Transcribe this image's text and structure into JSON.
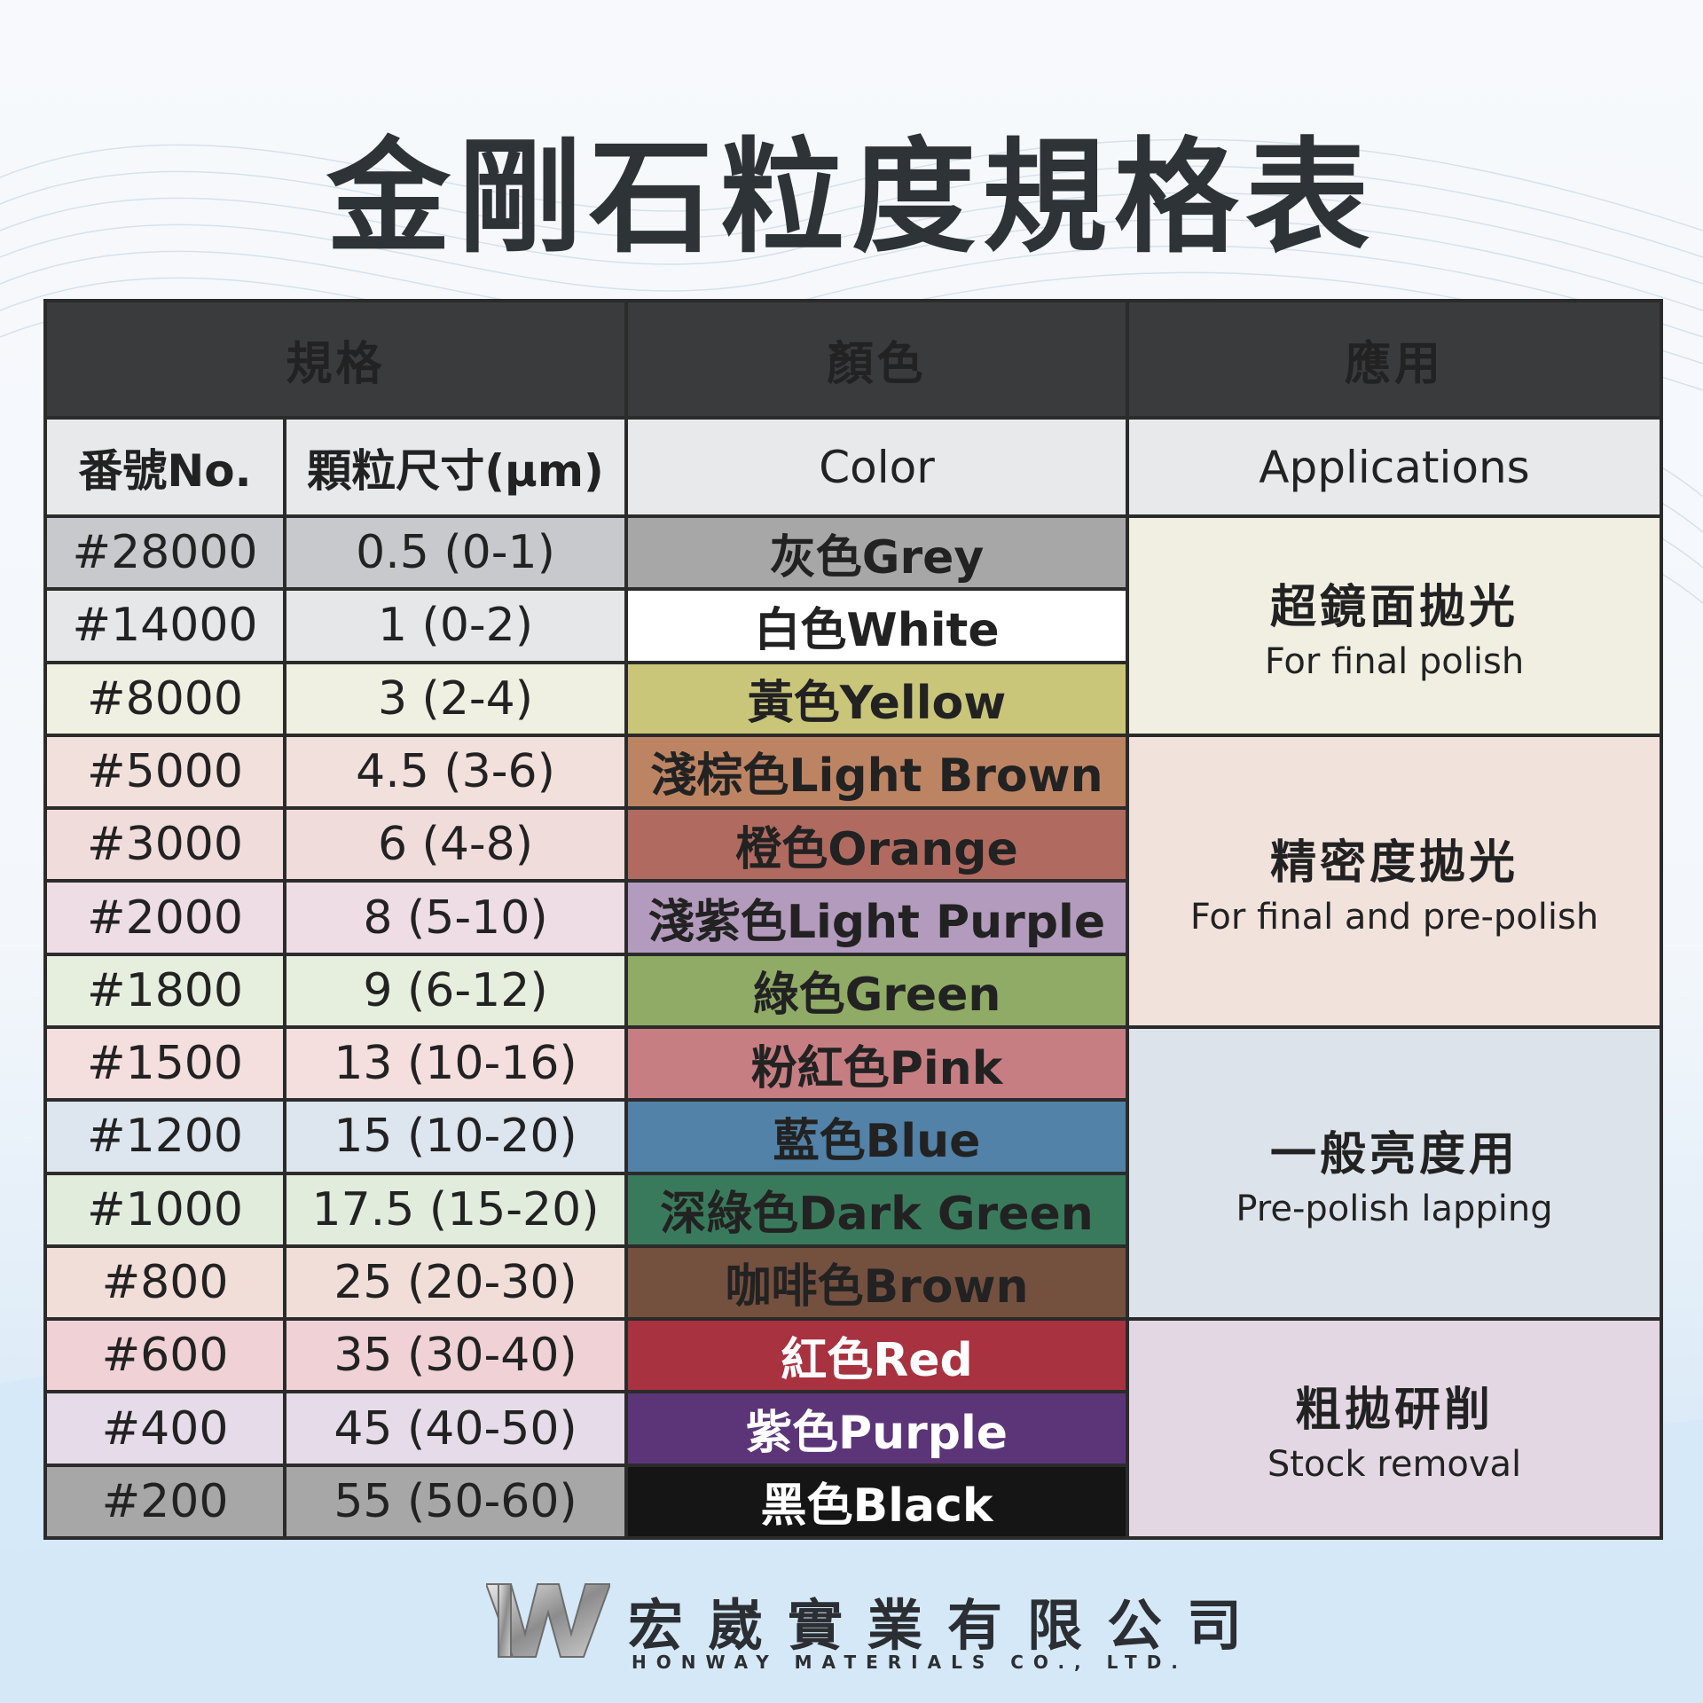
{
  "title": "金剛石粒度規格表",
  "table": {
    "group_headers": [
      "規格",
      "顏色",
      "應用"
    ],
    "sub_headers": {
      "no": "番號No.",
      "size": "顆粒尺寸(μm)",
      "color": "Color",
      "applications": "Applications"
    },
    "rows": [
      {
        "no": "#28000",
        "size": "0.5 (0-1)",
        "color": "灰色Grey",
        "row_bg": "#c8c9cc",
        "swatch": "#a8a7a7",
        "text": "#222222"
      },
      {
        "no": "#14000",
        "size": "1 (0-2)",
        "color": "白色White",
        "row_bg": "#e6e7e8",
        "swatch": "#ffffff",
        "text": "#222222"
      },
      {
        "no": "#8000",
        "size": "3 (2-4)",
        "color": "黃色Yellow",
        "row_bg": "#f0f0e2",
        "swatch": "#c9c67a",
        "text": "#222222"
      },
      {
        "no": "#5000",
        "size": "4.5 (3-6)",
        "color": "淺棕色Light Brown",
        "row_bg": "#f1e0db",
        "swatch": "#bd8463",
        "text": "#222222"
      },
      {
        "no": "#3000",
        "size": "6 (4-8)",
        "color": "橙色Orange",
        "row_bg": "#f1dcdc",
        "swatch": "#b06a5f",
        "text": "#222222"
      },
      {
        "no": "#2000",
        "size": "8 (5-10)",
        "color": "淺紫色Light Purple",
        "row_bg": "#eeddE4",
        "swatch": "#b39bbd",
        "text": "#222222"
      },
      {
        "no": "#1800",
        "size": "9 (6-12)",
        "color": "綠色Green",
        "row_bg": "#e6eedd",
        "swatch": "#8fab66",
        "text": "#222222"
      },
      {
        "no": "#1500",
        "size": "13 (10-16)",
        "color": "粉紅色Pink",
        "row_bg": "#f4dede",
        "swatch": "#c77e82",
        "text": "#222222"
      },
      {
        "no": "#1200",
        "size": "15 (10-20)",
        "color": "藍色Blue",
        "row_bg": "#dde6ee",
        "swatch": "#5282a8",
        "text": "#222222"
      },
      {
        "no": "#1000",
        "size": "17.5 (15-20)",
        "color": "深綠色Dark Green",
        "row_bg": "#e1ecdd",
        "swatch": "#3a7a5c",
        "text": "#222222"
      },
      {
        "no": "#800",
        "size": "25 (20-30)",
        "color": "咖啡色Brown",
        "row_bg": "#f1ded8",
        "swatch": "#74503f",
        "text": "#222222"
      },
      {
        "no": "#600",
        "size": "35 (30-40)",
        "color": "紅色Red",
        "row_bg": "#f0d2d6",
        "swatch": "#a83240",
        "text": "#ffffff"
      },
      {
        "no": "#400",
        "size": "45 (40-50)",
        "color": "紫色Purple",
        "row_bg": "#e6dbe8",
        "swatch": "#5c3579",
        "text": "#ffffff"
      },
      {
        "no": "#200",
        "size": "55 (50-60)",
        "color": "黑色Black",
        "row_bg": "#a7a7a7",
        "swatch": "#151515",
        "text": "#ffffff"
      }
    ],
    "applications": [
      {
        "zh": "超鏡面拋光",
        "en": "For final polish",
        "rowspan": 3,
        "bg": "#f0efe2"
      },
      {
        "zh": "精密度拋光",
        "en": "For final and pre-polish",
        "rowspan": 4,
        "bg": "#f1e2dc"
      },
      {
        "zh": "一般亮度用",
        "en": "Pre-polish lapping",
        "rowspan": 4,
        "bg": "#dde3ea"
      },
      {
        "zh": "粗拋研削",
        "en": "Stock removal",
        "rowspan": 3,
        "bg": "#e3d7e4"
      }
    ]
  },
  "company": {
    "name_zh": "宏崴實業有限公司",
    "name_en": "HONWAY MATERIALS CO., LTD."
  }
}
